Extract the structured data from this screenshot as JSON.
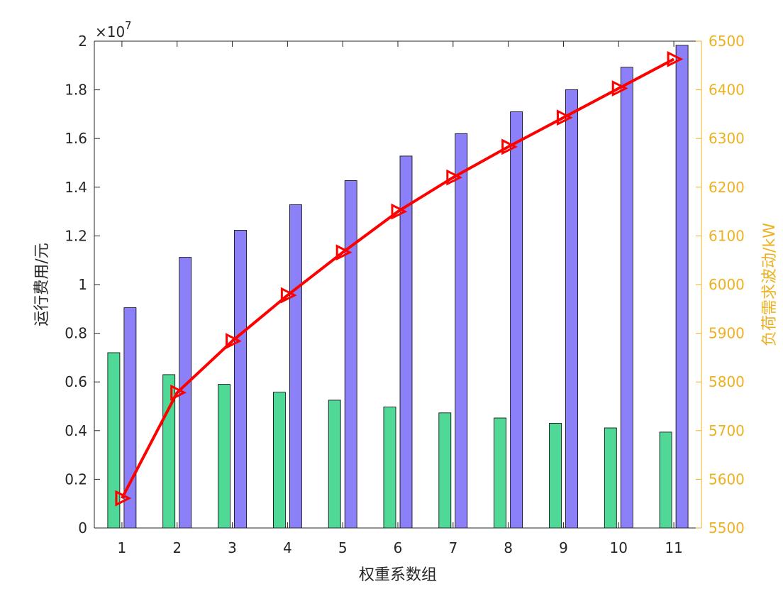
{
  "chart_data": {
    "type": "bar+line",
    "categories": [
      "1",
      "2",
      "3",
      "4",
      "5",
      "6",
      "7",
      "8",
      "9",
      "10",
      "11"
    ],
    "xlabel": "权重系数组",
    "ylabel_left": "运行费用/元",
    "ylabel_right": "负荷需求波动/kW",
    "left_axis": {
      "ylim": [
        0,
        20000000
      ],
      "ticks": [
        0,
        0.2,
        0.4,
        0.6,
        0.8,
        1,
        1.2,
        1.4,
        1.6,
        1.8,
        2
      ],
      "exponent_label": "×10",
      "exponent_value": "7"
    },
    "right_axis": {
      "ylim": [
        5500,
        6500
      ],
      "ticks": [
        5500,
        5600,
        5700,
        5800,
        5900,
        6000,
        6100,
        6200,
        6300,
        6400,
        6500
      ]
    },
    "bar_series": [
      {
        "color": "#50d996",
        "values": [
          7200000,
          6300000,
          5900000,
          5580000,
          5250000,
          4970000,
          4730000,
          4520000,
          4300000,
          4110000,
          3940000
        ]
      },
      {
        "color": "#8c80f8",
        "values": [
          9050000,
          11120000,
          12230000,
          13280000,
          14270000,
          15280000,
          16200000,
          17100000,
          18010000,
          18930000,
          19830000
        ]
      }
    ],
    "line_series": [
      {
        "color": "#ff0000",
        "marker": "triangle-right",
        "axis": "right",
        "values": [
          5561,
          5778,
          5884,
          5978,
          6066,
          6150,
          6220,
          6283,
          6343,
          6403,
          6463
        ]
      }
    ],
    "colors": {
      "axis": "#262626",
      "right_axis": "#edb120"
    },
    "grid": false
  }
}
